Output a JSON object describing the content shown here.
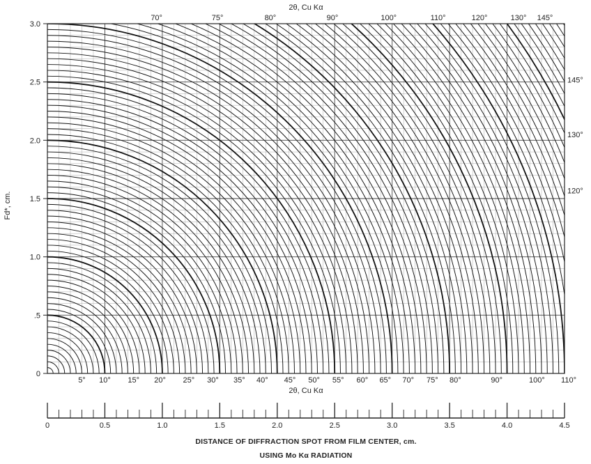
{
  "chart_data": {
    "type": "line",
    "x_range": [
      0,
      4.5
    ],
    "y_range": [
      0,
      3.0
    ],
    "ylabel": "Fd*, cm.",
    "top_axis_title": "2θ, Cu Kα",
    "bottom_axis_title": "2θ, Cu Kα",
    "grid": true,
    "y_ticks": [
      {
        "value": 0,
        "label": "0"
      },
      {
        "value": 0.5,
        "label": ".5"
      },
      {
        "value": 1.0,
        "label": "1.0"
      },
      {
        "value": 1.5,
        "label": "1.5"
      },
      {
        "value": 2.0,
        "label": "2.0"
      },
      {
        "value": 2.5,
        "label": "2.5"
      },
      {
        "value": 3.0,
        "label": "3.0"
      }
    ],
    "bottom_angle_labels": [
      {
        "x": 0.3,
        "label": "5°"
      },
      {
        "x": 0.5,
        "label": "10°"
      },
      {
        "x": 0.75,
        "label": "15°"
      },
      {
        "x": 0.98,
        "label": "20°"
      },
      {
        "x": 1.23,
        "label": "25°"
      },
      {
        "x": 1.44,
        "label": "30°"
      },
      {
        "x": 1.67,
        "label": "35°"
      },
      {
        "x": 1.87,
        "label": "40°"
      },
      {
        "x": 2.11,
        "label": "45°"
      },
      {
        "x": 2.32,
        "label": "50°"
      },
      {
        "x": 2.53,
        "label": "55°"
      },
      {
        "x": 2.74,
        "label": "60°"
      },
      {
        "x": 2.94,
        "label": "65°"
      },
      {
        "x": 3.14,
        "label": "70°"
      },
      {
        "x": 3.35,
        "label": "75°"
      },
      {
        "x": 3.55,
        "label": "80°"
      },
      {
        "x": 3.91,
        "label": "90°"
      },
      {
        "x": 4.26,
        "label": "100°"
      },
      {
        "x": 4.5,
        "label": "110°"
      }
    ],
    "top_angle_labels": [
      {
        "x": 0.95,
        "label": "70°"
      },
      {
        "x": 1.48,
        "label": "75°"
      },
      {
        "x": 1.94,
        "label": "80°"
      },
      {
        "x": 2.48,
        "label": "90°"
      },
      {
        "x": 2.97,
        "label": "100°"
      },
      {
        "x": 3.4,
        "label": "110°"
      },
      {
        "x": 3.76,
        "label": "120°"
      },
      {
        "x": 4.1,
        "label": "130°"
      },
      {
        "x": 4.33,
        "label": "145°"
      }
    ],
    "right_angle_labels": [
      {
        "y": 2.52,
        "label": "145°"
      },
      {
        "y": 2.05,
        "label": "130°"
      },
      {
        "y": 1.57,
        "label": "120°"
      }
    ],
    "arc_radii_step": 0.05,
    "arc_radius_max": 5.4,
    "heavy_every": 10,
    "scale": {
      "range": [
        0,
        4.5
      ],
      "minor_step": 0.1,
      "labels": [
        {
          "value": 0,
          "label": "0"
        },
        {
          "value": 0.5,
          "label": "0.5"
        },
        {
          "value": 1.0,
          "label": "1.0"
        },
        {
          "value": 1.5,
          "label": "1.5"
        },
        {
          "value": 2.0,
          "label": "2.0"
        },
        {
          "value": 2.5,
          "label": "2.5"
        },
        {
          "value": 3.0,
          "label": "3.0"
        },
        {
          "value": 3.5,
          "label": "3.5"
        },
        {
          "value": 4.0,
          "label": "4.0"
        },
        {
          "value": 4.5,
          "label": "4.5"
        }
      ]
    },
    "caption_line1": "DISTANCE OF DIFFRACTION SPOT FROM FILM CENTER, cm.",
    "caption_line2": "USING Mo Kα RADIATION"
  }
}
